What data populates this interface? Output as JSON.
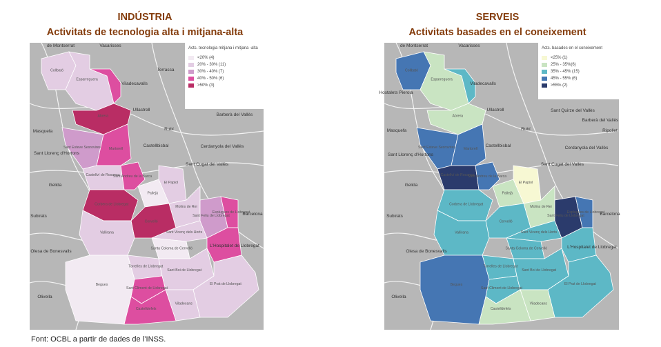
{
  "panels": [
    {
      "heading": "INDÚSTRIA",
      "subheading": "Activitats de tecnologia alta i mitjana-alta",
      "legend": {
        "title": "Acts. tecnologia mitjana i mitjana -alta",
        "items": [
          {
            "label": "<20% (4)",
            "color": "#f2eaf2"
          },
          {
            "label": "20% - 30% (11)",
            "color": "#e3cde3"
          },
          {
            "label": "30% - 40% (7)",
            "color": "#cf9bcb"
          },
          {
            "label": "40% - 50% (6)",
            "color": "#dd4ea0"
          },
          {
            "label": ">50% (3)",
            "color": "#b92d64"
          }
        ]
      },
      "base_labels": [
        "de Montserrat",
        "Vacarisses",
        "Terrassa",
        "Viladecavalls",
        "Ullastrell",
        "Barberà del Vallès",
        "Masquefa",
        "Rubí",
        "Castellbisbal",
        "Sant Llorenç d'Hortons",
        "Cerdanyola del Vallès",
        "Sant Cugat del Vallès",
        "Gelida",
        "Subirats",
        "Barcelona",
        "Olesa de Bonesvalls",
        "L'Hospitalet de Llobregat",
        "Olivella"
      ]
    },
    {
      "heading": "SERVEIS",
      "subheading": "Activitats basades en el coneixement",
      "legend": {
        "title": "Acts. basades en el coneixement",
        "items": [
          {
            "label": "<25% (1)",
            "color": "#f7f8d3"
          },
          {
            "label": "25% - 35%(6)",
            "color": "#c9e4c2"
          },
          {
            "label": "35% - 45% (15)",
            "color": "#5db8c6"
          },
          {
            "label": "45% - 55% (6)",
            "color": "#4576b3"
          },
          {
            "label": ">55% (2)",
            "color": "#2b3b6c"
          }
        ]
      },
      "base_labels": [
        "de Montserrat",
        "Vacarisses",
        "Hostalets Pierola",
        "Viladecavalls",
        "Ullastrell",
        "Sant Quirze del Vallès",
        "Barberà del Vallès",
        "Masquefa",
        "Rubí",
        "Ripollet",
        "Castellbisbal",
        "Cerdanyola del Vallès",
        "Sant Llorenç d'Hortons",
        "Sant Cugat del Vallès",
        "Gelida",
        "Barcelona",
        "Subirats",
        "Olesa de Bonesvalls",
        "L'Hospitalet de Llobregat",
        "Olivella"
      ]
    }
  ],
  "municipalities": [
    "Collbató",
    "Esparreguera",
    "Abrera",
    "Sant Esteve Sesrovires",
    "Martorell",
    "Castellví de Rosanes",
    "Sant Andreu de la Barca",
    "Corbera de Llobregat",
    "Pallejà",
    "El Papiol",
    "Molins de Rei",
    "Vallirana",
    "Cervelló",
    "Sant Vicenç dels Horts",
    "Sant Feliu de Llobregat",
    "Esplugues de Llobregat",
    "Santa Coloma de Cervelló",
    "Torrelles de Llobregat",
    "Sant Climent de Llobregat",
    "Sant Boi de Llobregat",
    "Begues",
    "Viladecans",
    "El Prat de Llobregat",
    "Castelldefels"
  ],
  "footer": "Font: OCBL a partir de dades de l’INSS."
}
